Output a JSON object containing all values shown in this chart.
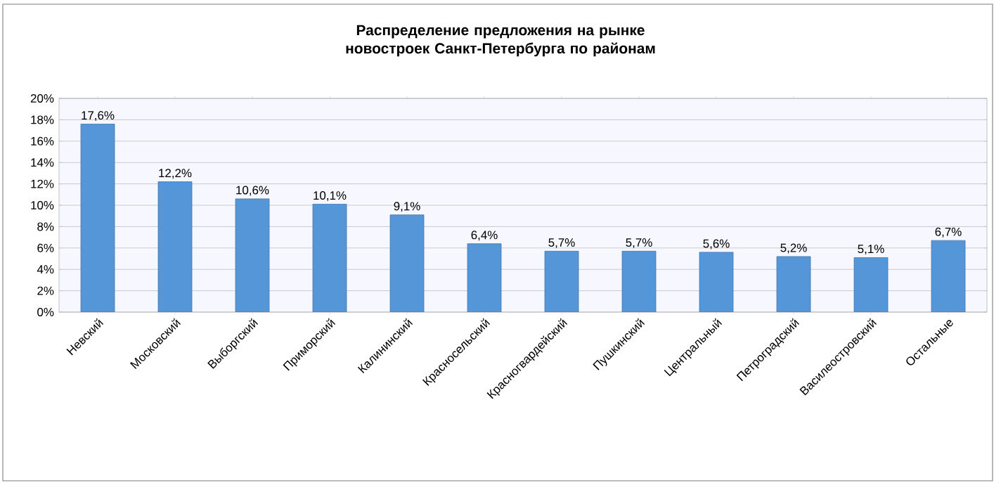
{
  "chart_data": {
    "type": "bar",
    "title": "Распределение предложения на рынке новостроек Санкт-Петербурга по районам",
    "categories": [
      "Невский",
      "Московский",
      "Выборгский",
      "Приморский",
      "Калининский",
      "Красносельский",
      "Красногвардейский",
      "Пушкинский",
      "Центральный",
      "Петроградский",
      "Василеостровский",
      "Остальные"
    ],
    "values": [
      17.6,
      12.2,
      10.6,
      10.1,
      9.1,
      6.4,
      5.7,
      5.7,
      5.6,
      5.2,
      5.1,
      6.7
    ],
    "value_labels": [
      "17,6%",
      "12,2%",
      "10,6%",
      "10,1%",
      "9,1%",
      "6,4%",
      "5,7%",
      "5,7%",
      "5,6%",
      "5,2%",
      "5,1%",
      "6,7%"
    ],
    "color": "#5596d8",
    "ylim": [
      0,
      20
    ],
    "yticks": [
      {
        "value": 0,
        "label": "0%"
      },
      {
        "value": 2,
        "label": "2%"
      },
      {
        "value": 4,
        "label": "4%"
      },
      {
        "value": 6,
        "label": "6%"
      },
      {
        "value": 8,
        "label": "8%"
      },
      {
        "value": 10,
        "label": "10%"
      },
      {
        "value": 12,
        "label": "12%"
      },
      {
        "value": 14,
        "label": "14%"
      },
      {
        "value": 16,
        "label": "16%"
      },
      {
        "value": 18,
        "label": "18%"
      },
      {
        "value": 20,
        "label": "20%"
      }
    ],
    "grid": "y"
  }
}
